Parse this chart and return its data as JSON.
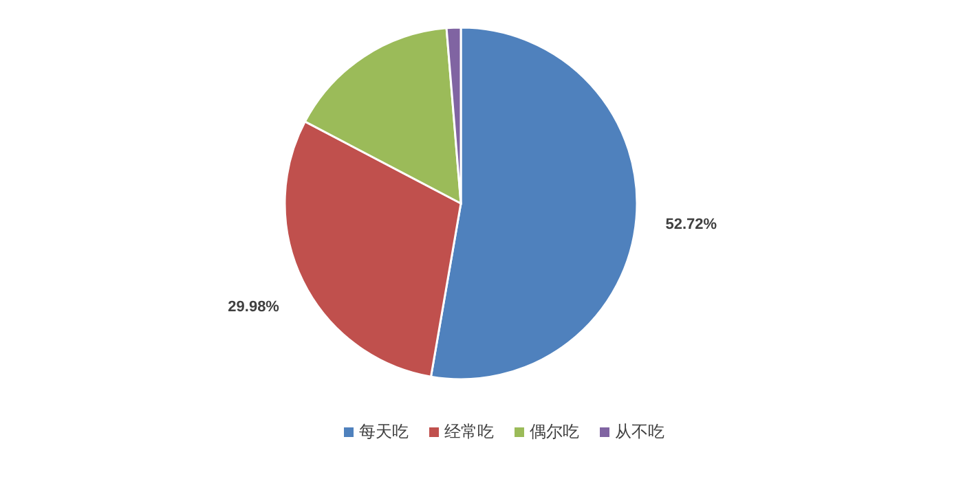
{
  "chart_data": {
    "type": "pie",
    "categories": [
      "每天吃",
      "经常吃",
      "偶尔吃",
      "从不吃"
    ],
    "values": [
      52.72,
      29.98,
      16.0,
      1.3
    ],
    "colors": [
      "#4f81bd",
      "#c0504d",
      "#9bbb59",
      "#8064a2"
    ],
    "value_labels": [
      "52.72%",
      "29.98%",
      null,
      null
    ],
    "legend": "bottom"
  }
}
